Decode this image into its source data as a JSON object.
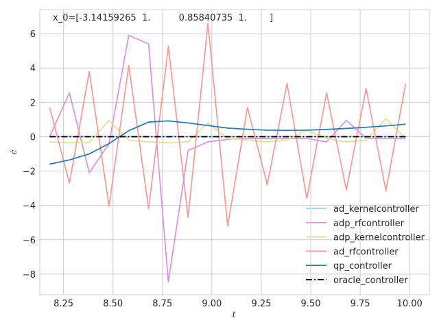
{
  "chart_data": {
    "type": "line",
    "title": "x_0=[-3.14159265  1.          0.85840735  1.        ]",
    "xlabel": "t",
    "ylabel": "ċ",
    "xlim": [
      8.13,
      10.1
    ],
    "ylim": [
      -9.2,
      7.4
    ],
    "xticks": [
      8.25,
      8.5,
      8.75,
      9.0,
      9.25,
      9.5,
      9.75,
      10.0
    ],
    "xtick_labels": [
      "8.25",
      "8.50",
      "8.75",
      "9.00",
      "9.25",
      "9.50",
      "9.75",
      "10.00"
    ],
    "yticks": [
      -8,
      -6,
      -4,
      -2,
      0,
      2,
      4,
      6
    ],
    "ytick_labels": [
      "−8",
      "−6",
      "−4",
      "−2",
      "0",
      "2",
      "4",
      "6"
    ],
    "grid": true,
    "legend_position": "lower-right",
    "x": [
      8.18,
      8.28,
      8.38,
      8.48,
      8.58,
      8.68,
      8.78,
      8.88,
      8.98,
      9.08,
      9.18,
      9.28,
      9.38,
      9.48,
      9.58,
      9.68,
      9.78,
      9.88,
      9.98
    ],
    "series": [
      {
        "name": "ad_kernelcontroller",
        "color": "#8ed6ea",
        "opacity": 1,
        "values": [
          0,
          0,
          0,
          0,
          0,
          0,
          0,
          0,
          0,
          0,
          0,
          0,
          0,
          0,
          0,
          0,
          0,
          0,
          0
        ]
      },
      {
        "name": "adp_rfcontroller",
        "color": "#dd8fe2",
        "opacity": 1,
        "values": [
          0.0,
          2.55,
          -2.1,
          -0.4,
          5.9,
          5.4,
          -8.45,
          -0.8,
          -0.3,
          -0.15,
          -0.1,
          -0.1,
          -0.1,
          -0.1,
          -0.3,
          0.95,
          -0.1,
          -0.1,
          -0.1
        ]
      },
      {
        "name": "adp_kernelcontroller",
        "color": "#e2e08f",
        "opacity": 1,
        "values": [
          -0.3,
          -0.35,
          -0.35,
          0.95,
          -0.2,
          -0.3,
          -0.35,
          -0.3,
          0.8,
          -0.1,
          -0.2,
          -0.3,
          -0.2,
          0.4,
          -0.1,
          -0.3,
          -0.2,
          1.05,
          -0.1
        ]
      },
      {
        "name": "ad_rfcontroller",
        "color": "#ff9696",
        "opacity": 1,
        "values": [
          1.7,
          -2.7,
          3.8,
          -4.05,
          4.15,
          -4.2,
          5.25,
          -4.7,
          6.6,
          -5.2,
          1.7,
          -2.8,
          3.1,
          -3.6,
          2.55,
          -3.1,
          2.8,
          -3.15,
          3.1
        ]
      },
      {
        "name": "qp_controller",
        "color": "#1f77b4",
        "opacity": 1,
        "values": [
          -1.6,
          -1.35,
          -1.0,
          -0.4,
          0.35,
          0.85,
          0.92,
          0.8,
          0.65,
          0.5,
          0.43,
          0.38,
          0.37,
          0.38,
          0.42,
          0.48,
          0.55,
          0.63,
          0.73
        ]
      },
      {
        "name": "oracle_controller",
        "color": "#000000",
        "opacity": 1,
        "dash": "dashdot",
        "values": [
          0,
          0,
          0,
          0,
          0,
          0,
          0,
          0,
          0,
          0,
          0,
          0,
          0,
          0,
          0,
          0,
          0,
          0,
          0
        ]
      }
    ]
  }
}
